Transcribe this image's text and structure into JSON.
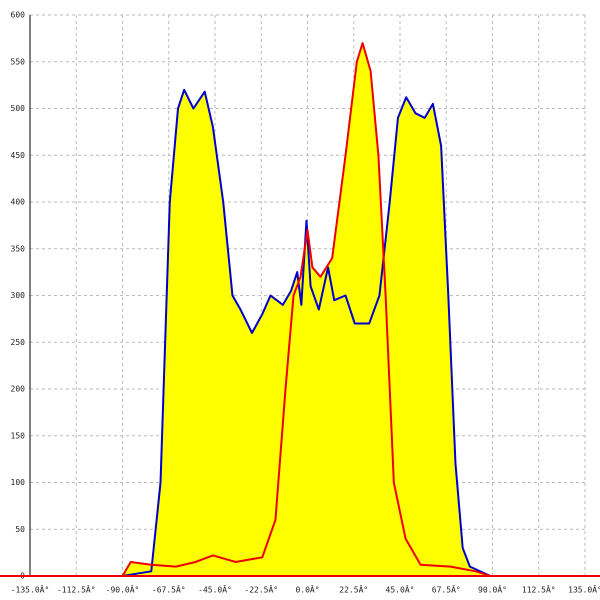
{
  "chart_data": {
    "type": "area-line",
    "xlim": [
      -135,
      135
    ],
    "ylim": [
      0,
      600
    ],
    "xticks": [
      {
        "value": -135,
        "label": "-135.0Â°"
      },
      {
        "value": -112.5,
        "label": "-112.5Â°"
      },
      {
        "value": -90,
        "label": "-90.0Â°"
      },
      {
        "value": -67.5,
        "label": "-67.5Â°"
      },
      {
        "value": -45,
        "label": "-45.0Â°"
      },
      {
        "value": -22.5,
        "label": "-22.5Â°"
      },
      {
        "value": 0,
        "label": "0.0Â°"
      },
      {
        "value": 22.5,
        "label": "22.5Â°"
      },
      {
        "value": 45,
        "label": "45.0Â°"
      },
      {
        "value": 67.5,
        "label": "67.5Â°"
      },
      {
        "value": 90,
        "label": "90.0Â°"
      },
      {
        "value": 112.5,
        "label": "112.5Â°"
      },
      {
        "value": 135,
        "label": "135.0Â°"
      }
    ],
    "yticks": [
      0,
      50,
      100,
      150,
      200,
      250,
      300,
      350,
      400,
      450,
      500,
      550,
      600
    ],
    "grid": true,
    "fill": "#ffff00",
    "series": [
      {
        "color": "#0000cc",
        "x": [
          -90,
          -76,
          -71.5,
          -67,
          -63,
          -60,
          -55.5,
          -50,
          -46,
          -41,
          -36.5,
          -32.6,
          -27,
          -22,
          -18,
          -12,
          -8,
          -5,
          -3,
          -0.5,
          1.5,
          5.5,
          10,
          13,
          18.5,
          23,
          30,
          35,
          40,
          44,
          48,
          52.5,
          57,
          61,
          65,
          68.5,
          72,
          75.5,
          79,
          89
        ],
        "values": [
          0,
          5,
          100,
          400,
          500,
          520,
          500,
          518,
          480,
          400,
          300,
          285,
          260,
          280,
          300,
          290,
          305,
          325,
          290,
          380,
          310,
          285,
          330,
          295,
          300,
          270,
          270,
          300,
          400,
          490,
          512,
          495,
          490,
          505,
          460,
          300,
          120,
          30,
          10,
          0
        ]
      },
      {
        "color": "#ee0000",
        "x": [
          -90,
          -86,
          -76,
          -64,
          -54.5,
          -46,
          -35,
          -22,
          -15.6,
          -10.7,
          -6.8,
          -3.4,
          0,
          2.4,
          6.3,
          12,
          18.5,
          24,
          26.8,
          30.7,
          34.5,
          38,
          42,
          47.7,
          55,
          69.6,
          81.8,
          89
        ],
        "values": [
          0,
          15,
          12,
          10,
          15,
          22,
          15,
          20,
          60,
          200,
          300,
          320,
          370,
          330,
          320,
          340,
          450,
          550,
          570,
          540,
          450,
          300,
          100,
          40,
          12,
          10,
          5,
          0
        ]
      }
    ]
  }
}
